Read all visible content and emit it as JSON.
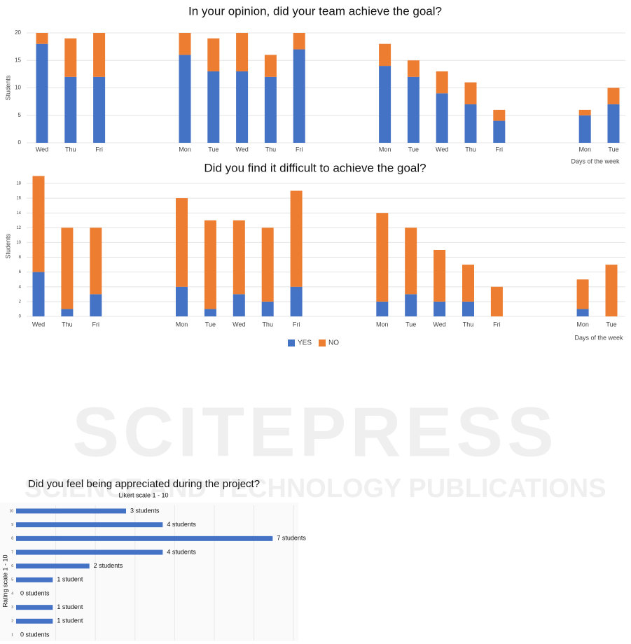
{
  "watermark": {
    "title": "SCITEPRESS",
    "subtitle": "SCIENCE AND TECHNOLOGY PUBLICATIONS"
  },
  "chart_data": [
    {
      "type": "stacked-bar",
      "title": "In your opinion, did your team achieve the goal?",
      "y_label": "Students",
      "x_label": "Days of the week",
      "categories": [
        "Wed",
        "Thu",
        "Fri",
        null,
        null,
        "Mon",
        "Tue",
        "Wed",
        "Thu",
        "Fri",
        null,
        null,
        "Mon",
        "Tue",
        "Wed",
        "Thu",
        "Fri",
        null,
        null,
        "Mon",
        "Tue"
      ],
      "series": [
        {
          "color": "#4472c4",
          "values": [
            18,
            12,
            12,
            null,
            null,
            16,
            13,
            13,
            12,
            17,
            null,
            null,
            14,
            12,
            9,
            7,
            4,
            null,
            null,
            5,
            7
          ]
        },
        {
          "color": "#ed7d31",
          "values": [
            2,
            7,
            8,
            null,
            null,
            4,
            6,
            7,
            4,
            3,
            null,
            null,
            4,
            3,
            4,
            4,
            2,
            null,
            null,
            1,
            3
          ]
        }
      ],
      "ylim": [
        0,
        20
      ],
      "yticks": [
        0,
        5,
        10,
        15,
        20
      ],
      "grid": true
    },
    {
      "type": "stacked-bar",
      "title": "Did you find it difficult to achieve the goal?",
      "y_label": "Students",
      "x_label": "Days of the week",
      "categories": [
        "Wed",
        "Thu",
        "Fri",
        null,
        null,
        "Mon",
        "Tue",
        "Wed",
        "Thu",
        "Fri",
        null,
        null,
        "Mon",
        "Tue",
        "Wed",
        "Thu",
        "Fri",
        null,
        null,
        "Mon",
        "Tue"
      ],
      "series": [
        {
          "name": "YES",
          "color": "#4472c4",
          "values": [
            6,
            1,
            3,
            null,
            null,
            4,
            1,
            3,
            2,
            4,
            null,
            null,
            2,
            3,
            2,
            2,
            0,
            null,
            null,
            1,
            0
          ]
        },
        {
          "name": "NO",
          "color": "#ed7d31",
          "values": [
            13,
            11,
            9,
            null,
            null,
            12,
            12,
            10,
            10,
            13,
            null,
            null,
            12,
            9,
            7,
            5,
            4,
            null,
            null,
            4,
            7
          ]
        }
      ],
      "ylim": [
        0,
        19
      ],
      "yticks": [
        0,
        2,
        4,
        6,
        8,
        10,
        12,
        14,
        16,
        18
      ],
      "grid": true,
      "legend": "bottom"
    },
    {
      "type": "hbar",
      "title": "Did you feel being appreciated during the project?",
      "subtitle": "Likert scale 1 - 10",
      "y_label": "Rating scale 1 - 10",
      "categories": [
        "10",
        "9",
        "8",
        "7",
        "6",
        "5",
        "4",
        "3",
        "2",
        "1"
      ],
      "values": [
        3,
        4,
        7,
        4,
        2,
        1,
        0,
        1,
        1,
        0
      ],
      "value_labels": [
        "3 students",
        "4 students",
        "7 students",
        "4 students",
        "2 students",
        "1 student",
        "0 students",
        "1 student",
        "1 student",
        "0 students"
      ],
      "color": "#4472c4",
      "xlim": [
        0,
        7.7
      ]
    }
  ]
}
